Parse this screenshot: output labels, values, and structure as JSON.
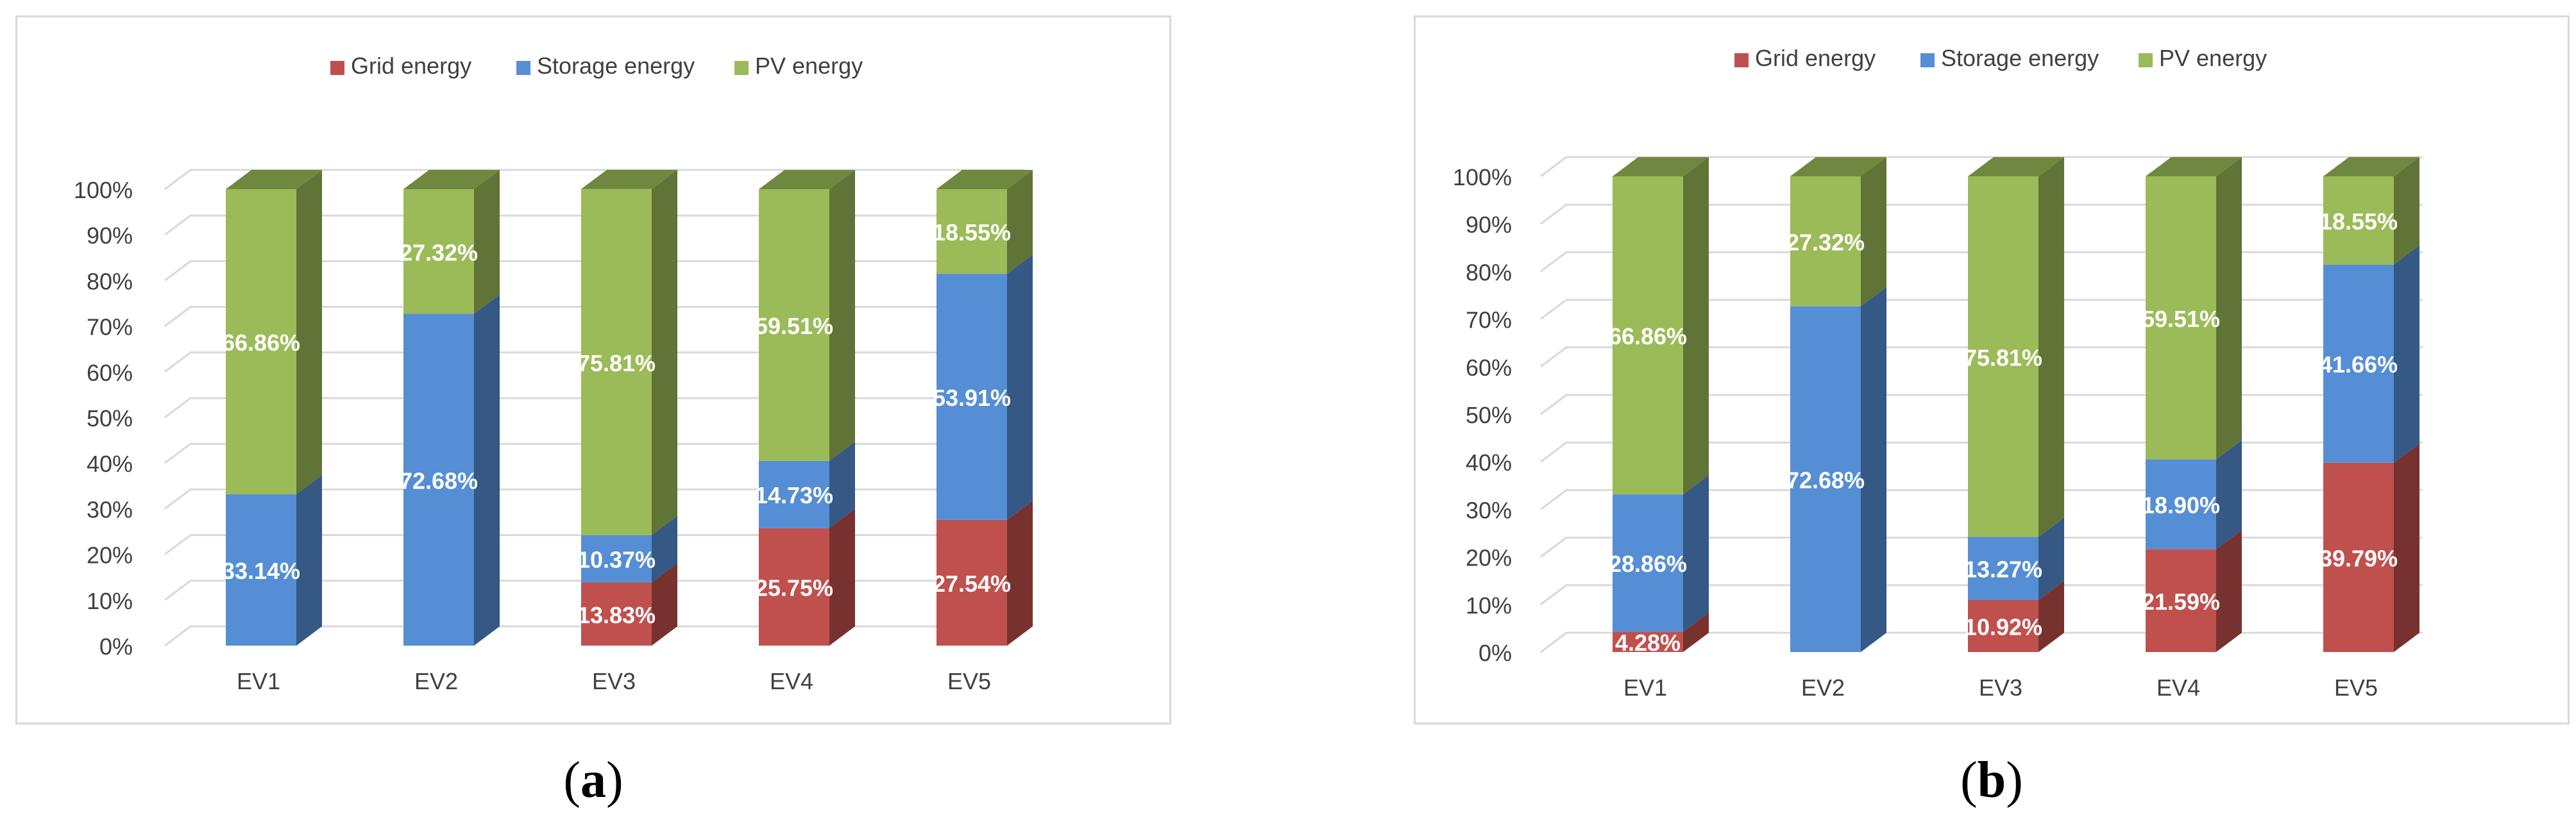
{
  "legend": {
    "grid": "Grid energy",
    "storage": "Storage energy",
    "pv": "PV energy"
  },
  "colors": {
    "grid": "#c0504d",
    "storage": "#558ed5",
    "pv": "#9bbb59",
    "gridline": "#d9d9d9",
    "axis_text": "#404040"
  },
  "captions": [
    {
      "open": "(",
      "letter": "a",
      "close": ")"
    },
    {
      "open": "(",
      "letter": "b",
      "close": ")"
    }
  ],
  "chart_data": [
    {
      "type": "bar",
      "stacked": true,
      "style": "3d-column",
      "categories": [
        "EV1",
        "EV2",
        "EV3",
        "EV4",
        "EV5"
      ],
      "y_ticks": [
        "0%",
        "10%",
        "20%",
        "30%",
        "40%",
        "50%",
        "60%",
        "70%",
        "80%",
        "90%",
        "100%"
      ],
      "ylim": [
        0,
        100
      ],
      "legend_position": "top",
      "grid": true,
      "series": [
        {
          "key": "grid",
          "name": "Grid energy",
          "values": [
            0,
            0,
            13.83,
            25.75,
            27.54
          ],
          "labels": [
            "",
            "",
            "13.83%",
            "25.75%",
            "27.54%"
          ]
        },
        {
          "key": "storage",
          "name": "Storage energy",
          "values": [
            33.14,
            72.68,
            10.37,
            14.73,
            53.91
          ],
          "labels": [
            "33.14%",
            "72.68%",
            "10.37%",
            "14.73%",
            "53.91%"
          ]
        },
        {
          "key": "pv",
          "name": "PV energy",
          "values": [
            66.86,
            27.32,
            75.81,
            59.51,
            18.55
          ],
          "labels": [
            "66.86%",
            "27.32%",
            "75.81%",
            "59.51%",
            "18.55%"
          ]
        }
      ]
    },
    {
      "type": "bar",
      "stacked": true,
      "style": "3d-column",
      "categories": [
        "EV1",
        "EV2",
        "EV3",
        "EV4",
        "EV5"
      ],
      "y_ticks": [
        "0%",
        "10%",
        "20%",
        "30%",
        "40%",
        "50%",
        "60%",
        "70%",
        "80%",
        "90%",
        "100%"
      ],
      "ylim": [
        0,
        100
      ],
      "legend_position": "top",
      "grid": true,
      "series": [
        {
          "key": "grid",
          "name": "Grid energy",
          "values": [
            4.28,
            0,
            10.92,
            21.59,
            39.79
          ],
          "labels": [
            "4.28%",
            "",
            "10.92%",
            "21.59%",
            "39.79%"
          ]
        },
        {
          "key": "storage",
          "name": "Storage energy",
          "values": [
            28.86,
            72.68,
            13.27,
            18.9,
            41.66
          ],
          "labels": [
            "28.86%",
            "72.68%",
            "13.27%",
            "18.90%",
            "41.66%"
          ]
        },
        {
          "key": "pv",
          "name": "PV energy",
          "values": [
            66.86,
            27.32,
            75.81,
            59.51,
            18.55
          ],
          "labels": [
            "66.86%",
            "27.32%",
            "75.81%",
            "59.51%",
            "18.55%"
          ]
        }
      ]
    }
  ]
}
